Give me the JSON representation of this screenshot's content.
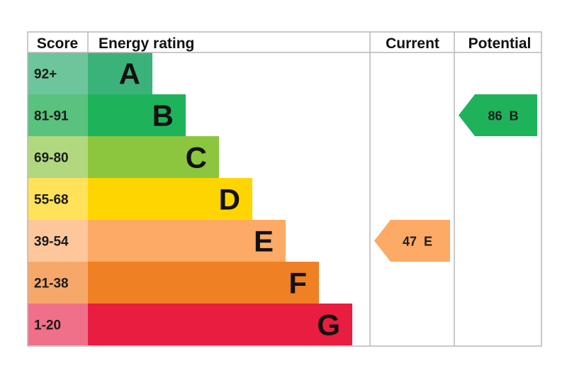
{
  "chart_data": {
    "type": "table",
    "headers": {
      "score": "Score",
      "rating": "Energy rating",
      "current": "Current",
      "potential": "Potential"
    },
    "bands": [
      {
        "letter": "A",
        "range": "92+",
        "color": "#3bb27a",
        "score_color": "#6cc59b"
      },
      {
        "letter": "B",
        "range": "81-91",
        "color": "#1eb35b",
        "score_color": "#5ac27f"
      },
      {
        "letter": "C",
        "range": "69-80",
        "color": "#8cc63f",
        "score_color": "#b2d87f"
      },
      {
        "letter": "D",
        "range": "55-68",
        "color": "#ffd500",
        "score_color": "#ffe25a"
      },
      {
        "letter": "E",
        "range": "39-54",
        "color": "#fcaa65",
        "score_color": "#fdc79b"
      },
      {
        "letter": "F",
        "range": "21-38",
        "color": "#ef8023",
        "score_color": "#f5a86a"
      },
      {
        "letter": "G",
        "range": "1-20",
        "color": "#e81d3f",
        "score_color": "#f0708a"
      }
    ],
    "current": {
      "value": 47,
      "band": "E",
      "label": "47  E",
      "color": "#fcaa65"
    },
    "potential": {
      "value": 86,
      "band": "B",
      "label": "86  B",
      "color": "#1eb35b"
    }
  }
}
